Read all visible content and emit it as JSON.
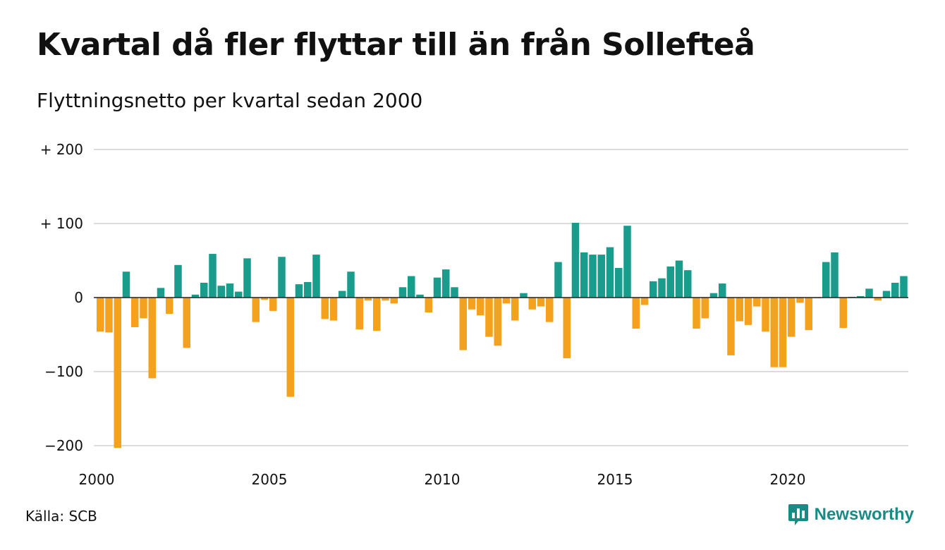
{
  "title": "Kvartal då fler flyttar till än från Sollefteå",
  "subtitle": "Flyttningsnetto per kvartal sedan 2000",
  "source": "Källa: SCB",
  "brand": "Newsworthy",
  "colors": {
    "positive": "#1a9c8c",
    "negative": "#f4a11d",
    "grid": "#dcdcdc",
    "baseline": "#222222",
    "brand": "#1a8a84"
  },
  "chart_data": {
    "type": "bar",
    "x_start": "2000 Q1",
    "x_end": "2023 Q3",
    "ylim": [
      -200,
      200
    ],
    "yticks": [
      200,
      100,
      0,
      -100,
      -200
    ],
    "ytick_labels": [
      "+ 200",
      "+ 100",
      "0",
      "−100",
      "−200"
    ],
    "xticks": [
      2000,
      2005,
      2010,
      2015,
      2020
    ],
    "xtick_labels": [
      "2000",
      "2005",
      "2010",
      "2015",
      "2020"
    ],
    "grid": true,
    "values": [
      -46,
      -47,
      -203,
      35,
      -40,
      -28,
      -109,
      13,
      -22,
      44,
      -68,
      4,
      20,
      59,
      16,
      19,
      8,
      53,
      -33,
      -3,
      -18,
      55,
      -134,
      18,
      21,
      58,
      -29,
      -31,
      9,
      35,
      -43,
      -4,
      -45,
      -4,
      -8,
      14,
      29,
      4,
      -20,
      27,
      38,
      14,
      -71,
      -16,
      -24,
      -53,
      -65,
      -8,
      -31,
      6,
      -16,
      -12,
      -33,
      48,
      -82,
      101,
      61,
      58,
      58,
      68,
      40,
      97,
      -42,
      -10,
      22,
      26,
      42,
      50,
      37,
      -42,
      -28,
      6,
      19,
      -78,
      -32,
      -37,
      -12,
      -46,
      -94,
      -94,
      -53,
      -7,
      -44,
      -1,
      48,
      61,
      -41,
      1,
      2,
      12,
      -4,
      9,
      20,
      29
    ]
  }
}
